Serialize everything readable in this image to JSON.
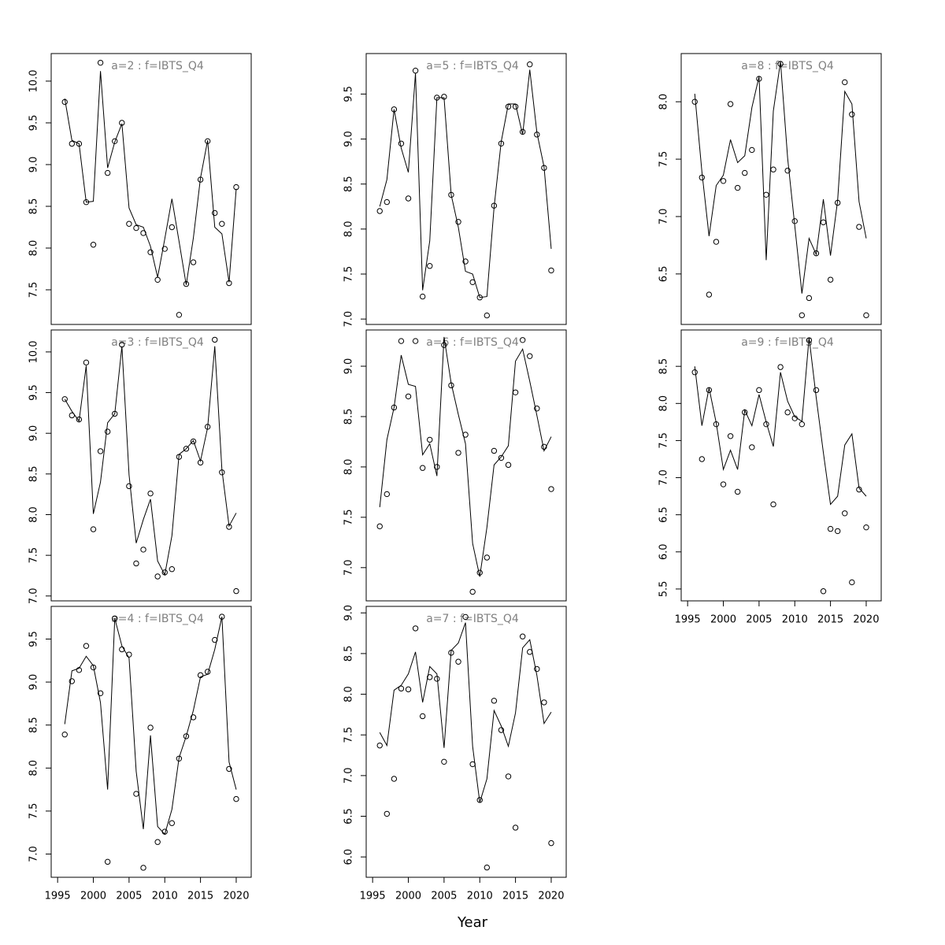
{
  "xlabel": "Year",
  "chart_data": [
    {
      "type": "line",
      "title": "a=2 : f=IBTS_Q4",
      "x": [
        1996,
        1997,
        1998,
        1999,
        2000,
        2001,
        2002,
        2003,
        2004,
        2005,
        2006,
        2007,
        2008,
        2009,
        2010,
        2011,
        2012,
        2013,
        2014,
        2015,
        2016,
        2017,
        2018,
        2019,
        2020
      ],
      "series": [
        {
          "style": "points",
          "color": "#000000",
          "values": [
            9.75,
            9.25,
            9.25,
            8.55,
            8.04,
            10.22,
            8.9,
            9.28,
            9.5,
            8.29,
            8.24,
            8.18,
            7.95,
            7.62,
            7.99,
            8.25,
            7.2,
            7.57,
            7.83,
            8.82,
            9.28,
            8.42,
            8.29,
            7.58,
            8.73
          ]
        },
        {
          "style": "line",
          "color": "#000000",
          "values": [
            9.79,
            9.29,
            9.25,
            8.55,
            8.56,
            10.12,
            8.96,
            9.27,
            9.49,
            8.48,
            8.28,
            8.25,
            8.02,
            7.65,
            8.11,
            8.59,
            8.08,
            7.56,
            8.12,
            8.84,
            9.29,
            8.25,
            8.17,
            7.59,
            8.71
          ]
        }
      ],
      "xlim": [
        1994.1,
        2022.1
      ],
      "ylim": [
        7.085,
        10.33
      ],
      "yticks": [
        7.5,
        {
          "value": 8,
          "label": "8.0"
        },
        8.5,
        {
          "value": 9,
          "label": "9.0"
        },
        9.5,
        {
          "value": 10,
          "label": "10.0"
        }
      ]
    },
    {
      "type": "line",
      "title": "a=3 : f=IBTS_Q4",
      "x": [
        1996,
        1997,
        1998,
        1999,
        2000,
        2001,
        2002,
        2003,
        2004,
        2005,
        2006,
        2007,
        2008,
        2009,
        2010,
        2011,
        2012,
        2013,
        2014,
        2015,
        2016,
        2017,
        2018,
        2019,
        2020
      ],
      "series": [
        {
          "style": "points",
          "color": "#000000",
          "values": [
            9.42,
            9.22,
            9.17,
            9.87,
            7.82,
            8.78,
            9.02,
            9.24,
            10.09,
            8.35,
            7.4,
            7.57,
            8.26,
            7.24,
            7.29,
            7.33,
            8.71,
            8.81,
            8.9,
            8.64,
            9.08,
            10.15,
            8.52,
            7.85,
            7.06
          ]
        },
        {
          "style": "line",
          "color": "#000000",
          "values": [
            9.42,
            9.27,
            9.15,
            9.83,
            8.01,
            8.4,
            9.13,
            9.24,
            10.07,
            8.49,
            7.65,
            7.94,
            8.19,
            7.43,
            7.26,
            7.74,
            8.74,
            8.81,
            8.91,
            8.66,
            9.07,
            10.07,
            8.55,
            7.86,
            8.02
          ]
        }
      ],
      "xlim": [
        1994.1,
        2022.1
      ],
      "ylim": [
        6.94,
        10.27
      ],
      "yticks": [
        {
          "value": 7,
          "label": "7.0"
        },
        7.5,
        {
          "value": 8,
          "label": "8.0"
        },
        8.5,
        {
          "value": 9,
          "label": "9.0"
        },
        9.5,
        {
          "value": 10,
          "label": "10.0"
        }
      ]
    },
    {
      "type": "line",
      "title": "a=4 : f=IBTS_Q4",
      "x": [
        1996,
        1997,
        1998,
        1999,
        2000,
        2001,
        2002,
        2003,
        2004,
        2005,
        2006,
        2007,
        2008,
        2009,
        2010,
        2011,
        2012,
        2013,
        2014,
        2015,
        2016,
        2017,
        2018,
        2019,
        2020
      ],
      "series": [
        {
          "style": "points",
          "color": "#000000",
          "values": [
            8.39,
            9.01,
            9.14,
            9.42,
            9.17,
            8.87,
            6.91,
            9.74,
            9.38,
            9.32,
            7.7,
            6.84,
            8.47,
            7.14,
            7.26,
            7.36,
            8.11,
            8.37,
            8.59,
            9.08,
            9.12,
            9.49,
            9.76,
            7.99,
            7.64
          ]
        },
        {
          "style": "line",
          "color": "#000000",
          "values": [
            8.51,
            9.13,
            9.16,
            9.3,
            9.19,
            8.76,
            7.75,
            9.74,
            9.42,
            9.28,
            7.96,
            7.29,
            8.38,
            7.32,
            7.23,
            7.52,
            8.12,
            8.37,
            8.67,
            9.06,
            9.09,
            9.38,
            9.76,
            8.07,
            7.75
          ]
        }
      ],
      "xlim": [
        1994.1,
        2022.1
      ],
      "ylim": [
        6.73,
        9.88
      ],
      "xticks": [
        1995,
        2000,
        2005,
        2010,
        2015,
        2020
      ],
      "yticks": [
        {
          "value": 7,
          "label": "7.0"
        },
        7.5,
        {
          "value": 8,
          "label": "8.0"
        },
        8.5,
        {
          "value": 9,
          "label": "9.0"
        },
        9.5
      ]
    },
    {
      "type": "line",
      "title": "a=5 : f=IBTS_Q4",
      "x": [
        1996,
        1997,
        1998,
        1999,
        2000,
        2001,
        2002,
        2003,
        2004,
        2005,
        2006,
        2007,
        2008,
        2009,
        2010,
        2011,
        2012,
        2013,
        2014,
        2015,
        2016,
        2017,
        2018,
        2019,
        2020
      ],
      "series": [
        {
          "style": "points",
          "color": "#000000",
          "values": [
            8.2,
            8.3,
            9.33,
            8.95,
            8.34,
            9.76,
            7.25,
            7.59,
            9.46,
            9.47,
            8.38,
            8.08,
            7.64,
            7.41,
            7.24,
            7.04,
            8.26,
            8.95,
            9.36,
            9.36,
            9.08,
            9.83,
            9.05,
            8.68,
            7.54
          ]
        },
        {
          "style": "line",
          "color": "#000000",
          "values": [
            8.25,
            8.55,
            9.33,
            8.9,
            8.63,
            9.73,
            7.32,
            7.87,
            9.46,
            9.46,
            8.38,
            8.02,
            7.53,
            7.5,
            7.24,
            7.25,
            8.24,
            8.97,
            9.39,
            9.39,
            9.05,
            9.77,
            9.07,
            8.69,
            7.78
          ]
        }
      ],
      "xlim": [
        1994.1,
        2022.1
      ],
      "ylim": [
        6.94,
        9.95
      ],
      "yticks": [
        {
          "value": 7,
          "label": "7.0"
        },
        7.5,
        {
          "value": 8,
          "label": "8.0"
        },
        8.5,
        {
          "value": 9,
          "label": "9.0"
        },
        9.5
      ]
    },
    {
      "type": "line",
      "title": "a=6 : f=IBTS_Q4",
      "x": [
        1996,
        1997,
        1998,
        1999,
        2000,
        2001,
        2002,
        2003,
        2004,
        2005,
        2006,
        2007,
        2008,
        2009,
        2010,
        2011,
        2012,
        2013,
        2014,
        2015,
        2016,
        2017,
        2018,
        2019,
        2020
      ],
      "series": [
        {
          "style": "points",
          "color": "#000000",
          "values": [
            7.41,
            7.73,
            8.59,
            9.25,
            8.7,
            9.25,
            7.99,
            8.27,
            8.0,
            9.21,
            8.81,
            8.14,
            8.32,
            6.76,
            6.95,
            7.1,
            8.16,
            8.09,
            8.02,
            8.74,
            9.26,
            9.1,
            8.58,
            8.2,
            7.78
          ]
        },
        {
          "style": "line",
          "color": "#000000",
          "values": [
            7.6,
            8.27,
            8.59,
            9.11,
            8.82,
            8.8,
            8.12,
            8.23,
            7.91,
            9.29,
            8.83,
            8.52,
            8.23,
            7.24,
            6.91,
            7.4,
            8.02,
            8.1,
            8.21,
            9.05,
            9.17,
            8.85,
            8.51,
            8.16,
            8.3
          ]
        }
      ],
      "xlim": [
        1994.1,
        2022.1
      ],
      "ylim": [
        6.67,
        9.36
      ],
      "yticks": [
        {
          "value": 7,
          "label": "7.0"
        },
        7.5,
        {
          "value": 8,
          "label": "8.0"
        },
        8.5,
        {
          "value": 9,
          "label": "9.0"
        }
      ]
    },
    {
      "type": "line",
      "title": "a=7 : f=IBTS_Q4",
      "x": [
        1996,
        1997,
        1998,
        1999,
        2000,
        2001,
        2002,
        2003,
        2004,
        2005,
        2006,
        2007,
        2008,
        2009,
        2010,
        2011,
        2012,
        2013,
        2014,
        2015,
        2016,
        2017,
        2018,
        2019,
        2020
      ],
      "series": [
        {
          "style": "points",
          "color": "#000000",
          "values": [
            7.37,
            6.53,
            6.96,
            8.07,
            8.06,
            8.81,
            7.73,
            8.21,
            8.19,
            7.17,
            8.51,
            8.4,
            8.95,
            7.14,
            6.7,
            5.87,
            7.92,
            7.56,
            6.99,
            6.36,
            8.71,
            8.52,
            8.31,
            7.9,
            6.17
          ]
        },
        {
          "style": "line",
          "color": "#000000",
          "values": [
            7.53,
            7.37,
            8.05,
            8.11,
            8.25,
            8.52,
            7.9,
            8.34,
            8.25,
            7.34,
            8.54,
            8.63,
            8.88,
            7.36,
            6.67,
            6.96,
            7.8,
            7.61,
            7.36,
            7.77,
            8.57,
            8.67,
            8.23,
            7.64,
            7.78
          ]
        }
      ],
      "xlim": [
        1994.1,
        2022.1
      ],
      "ylim": [
        5.75,
        9.08
      ],
      "xticks": [
        1995,
        2000,
        2005,
        2010,
        2015,
        2020
      ],
      "yticks": [
        {
          "value": 6,
          "label": "6.0"
        },
        6.5,
        {
          "value": 7,
          "label": "7.0"
        },
        7.5,
        {
          "value": 8,
          "label": "8.0"
        },
        8.5,
        {
          "value": 9,
          "label": "9.0"
        }
      ]
    },
    {
      "type": "line",
      "title": "a=8 : f=IBTS_Q4",
      "x": [
        1996,
        1997,
        1998,
        1999,
        2000,
        2001,
        2002,
        2003,
        2004,
        2005,
        2006,
        2007,
        2008,
        2009,
        2010,
        2011,
        2012,
        2013,
        2014,
        2015,
        2016,
        2017,
        2018,
        2019,
        2020
      ],
      "series": [
        {
          "style": "points",
          "color": "#000000",
          "values": [
            8.0,
            7.34,
            6.32,
            6.78,
            7.31,
            7.98,
            7.25,
            7.38,
            7.58,
            8.2,
            7.19,
            7.41,
            8.33,
            7.4,
            6.96,
            6.14,
            6.29,
            6.68,
            6.95,
            6.45,
            7.12,
            8.17,
            7.89,
            6.91,
            6.14
          ]
        },
        {
          "style": "line",
          "color": "#000000",
          "values": [
            8.07,
            7.39,
            6.83,
            7.27,
            7.36,
            7.67,
            7.47,
            7.53,
            7.95,
            8.22,
            6.62,
            7.92,
            8.35,
            7.51,
            6.92,
            6.33,
            6.81,
            6.67,
            7.15,
            6.66,
            7.14,
            8.09,
            7.98,
            7.13,
            6.81
          ]
        }
      ],
      "xlim": [
        1994.1,
        2022.1
      ],
      "ylim": [
        6.06,
        8.42
      ],
      "yticks": [
        6.5,
        {
          "value": 7,
          "label": "7.0"
        },
        7.5,
        {
          "value": 8,
          "label": "8.0"
        }
      ]
    },
    {
      "type": "line",
      "title": "a=9 : f=IBTS_Q4",
      "x": [
        1996,
        1997,
        1998,
        1999,
        2000,
        2001,
        2002,
        2003,
        2004,
        2005,
        2006,
        2007,
        2008,
        2009,
        2010,
        2011,
        2012,
        2013,
        2014,
        2015,
        2016,
        2017,
        2018,
        2019,
        2020
      ],
      "series": [
        {
          "style": "points",
          "color": "#000000",
          "values": [
            8.42,
            7.25,
            8.18,
            7.72,
            6.91,
            7.56,
            6.81,
            7.88,
            7.41,
            8.18,
            7.72,
            6.64,
            8.49,
            7.88,
            7.8,
            7.72,
            8.85,
            8.18,
            5.47,
            6.31,
            6.28,
            6.52,
            5.59,
            6.84,
            6.33
          ]
        },
        {
          "style": "line",
          "color": "#000000",
          "values": [
            8.5,
            7.7,
            8.21,
            7.74,
            7.11,
            7.37,
            7.11,
            7.91,
            7.7,
            8.12,
            7.75,
            7.42,
            8.42,
            8.03,
            7.82,
            7.76,
            8.89,
            8.08,
            7.34,
            6.64,
            6.75,
            7.44,
            7.59,
            6.86,
            6.75
          ]
        }
      ],
      "xlim": [
        1994.1,
        2022.1
      ],
      "ylim": [
        5.34,
        8.99
      ],
      "xticks": [
        1995,
        2000,
        2005,
        2010,
        2015,
        2020
      ],
      "yticks": [
        5.5,
        {
          "value": 6,
          "label": "6.0"
        },
        6.5,
        {
          "value": 7,
          "label": "7.0"
        },
        7.5,
        {
          "value": 8,
          "label": "8.0"
        },
        8.5
      ]
    }
  ]
}
